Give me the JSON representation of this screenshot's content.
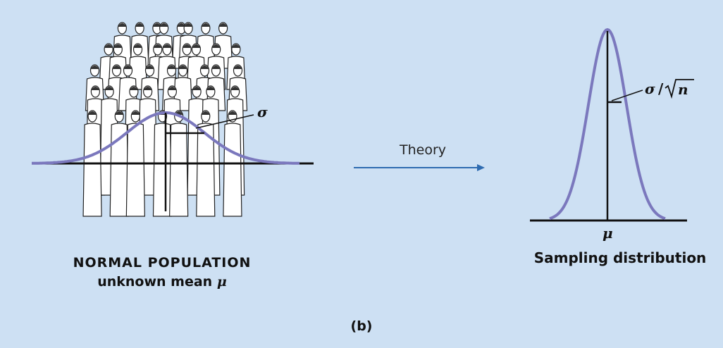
{
  "left": {
    "title": "NORMAL POPULATION",
    "subtitle": "unknown mean",
    "subtitle_symbol": "μ",
    "sigma_label": "σ",
    "image": "crowd-of-people-illustration"
  },
  "arrow": {
    "label": "Theory",
    "color": "#2e6bb0"
  },
  "right": {
    "sd_label_num": "σ",
    "sd_label_den": "n",
    "mean_label": "μ",
    "title": "Sampling distribution"
  },
  "panel_label": "(b)",
  "colors": {
    "background": "#cde0f3",
    "curve": "#7b78bd",
    "axis": "#111111"
  }
}
